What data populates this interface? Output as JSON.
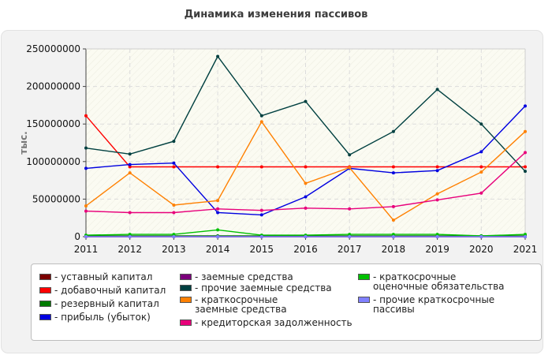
{
  "chart_data": {
    "type": "line",
    "title": "Динамика изменения пассивов",
    "xlabel": "",
    "ylabel": "тыс.",
    "x": [
      "2011",
      "2012",
      "2013",
      "2014",
      "2015",
      "2016",
      "2017",
      "2018",
      "2019",
      "2020",
      "2021"
    ],
    "ylim": [
      0,
      250000000
    ],
    "yticks": [
      "0",
      "50000000",
      "100000000",
      "150000000",
      "200000000",
      "250000000"
    ],
    "grid": true,
    "legend_position": "bottom",
    "series": [
      {
        "name": "- уставный капитал",
        "color": "#7b0000",
        "values": [
          100,
          100,
          100,
          100,
          100,
          100,
          100,
          100,
          100,
          100,
          100
        ]
      },
      {
        "name": "- добавочный капитал",
        "color": "#ff0000",
        "values": [
          161000000,
          93000000,
          93000000,
          93000000,
          93000000,
          93000000,
          93000000,
          93000000,
          93000000,
          93000000,
          93000000
        ]
      },
      {
        "name": "- резервный капитал",
        "color": "#007b00",
        "values": [
          1000000,
          1000000,
          1000000,
          1000000,
          1000000,
          1000000,
          1000000,
          1000000,
          1000000,
          1000000,
          1000000
        ]
      },
      {
        "name": "- прибыль (убыток)",
        "color": "#0000e0",
        "values": [
          91000000,
          96000000,
          98000000,
          32000000,
          29000000,
          53000000,
          91000000,
          85000000,
          88000000,
          113000000,
          174000000
        ]
      },
      {
        "name": "- заемные средства",
        "color": "#7b007b",
        "values": [
          0,
          0,
          0,
          0,
          0,
          0,
          0,
          0,
          0,
          0,
          0
        ]
      },
      {
        "name": "- прочие заемные средства",
        "color": "#004040",
        "values": [
          118000000,
          110000000,
          127000000,
          240000000,
          161000000,
          180000000,
          109000000,
          140000000,
          196000000,
          150000000,
          87000000
        ]
      },
      {
        "name": "- краткосрочные заемные средства",
        "color": "#ff8000",
        "values": [
          41000000,
          85000000,
          42000000,
          48000000,
          153000000,
          71000000,
          92000000,
          22000000,
          57000000,
          86000000,
          140000000
        ]
      },
      {
        "name": "- кредиторская задолженность",
        "color": "#e8007b",
        "values": [
          34000000,
          32000000,
          32000000,
          37000000,
          35000000,
          38000000,
          37000000,
          40000000,
          49000000,
          58000000,
          112000000
        ]
      },
      {
        "name": "- краткосрочные оценочные обязательства",
        "color": "#00c000",
        "values": [
          2000000,
          3000000,
          3000000,
          9000000,
          2000000,
          2000000,
          3000000,
          3000000,
          3000000,
          1000000,
          3000000
        ]
      },
      {
        "name": "- прочие краткосрочные пассивы",
        "color": "#8080ff",
        "values": [
          0,
          0,
          0,
          0,
          0,
          0,
          0,
          0,
          0,
          0,
          0
        ]
      }
    ]
  }
}
